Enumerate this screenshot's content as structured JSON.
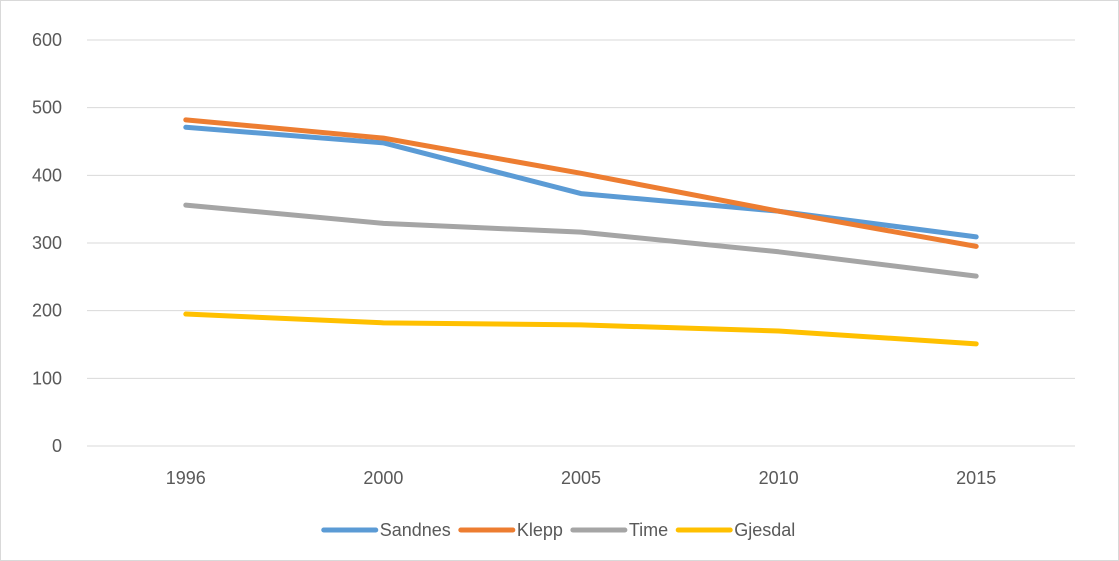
{
  "chart_data": {
    "type": "line",
    "categories": [
      "1996",
      "2000",
      "2005",
      "2010",
      "2015"
    ],
    "ylim": [
      0,
      600
    ],
    "yticks": [
      0,
      100,
      200,
      300,
      400,
      500,
      600
    ],
    "grid": true,
    "legend": "bottom",
    "series": [
      {
        "name": "Sandnes",
        "color": "#5b9bd5",
        "values": [
          471,
          448,
          373,
          347,
          309
        ]
      },
      {
        "name": "Klepp",
        "color": "#ed7d31",
        "values": [
          482,
          455,
          403,
          347,
          295
        ]
      },
      {
        "name": "Time",
        "color": "#a5a5a5",
        "values": [
          356,
          329,
          316,
          287,
          251
        ]
      },
      {
        "name": "Gjesdal",
        "color": "#ffc000",
        "values": [
          195,
          182,
          179,
          170,
          151
        ]
      }
    ]
  }
}
